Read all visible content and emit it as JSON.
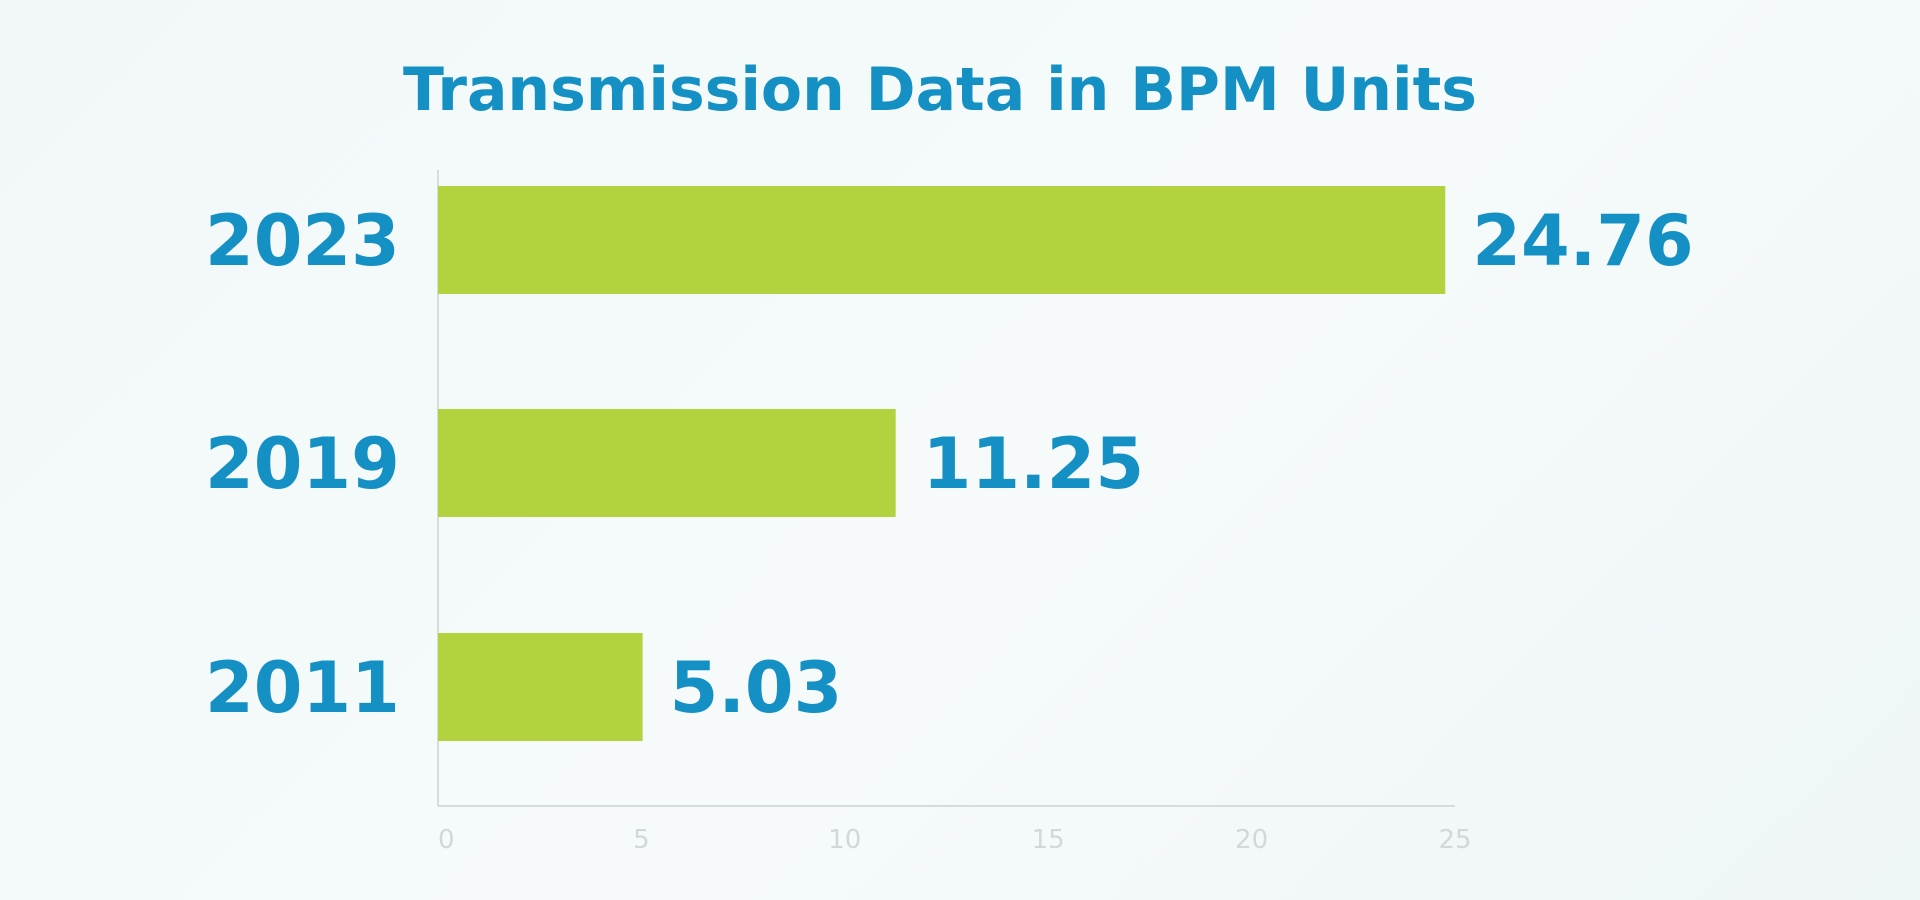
{
  "chart_data": {
    "type": "bar",
    "orientation": "horizontal",
    "title": "Transmission Data in BPM Units",
    "categories": [
      "2023",
      "2019",
      "2011"
    ],
    "values": [
      24.76,
      11.25,
      5.03
    ],
    "value_labels": [
      "24.76",
      "11.25",
      "5.03"
    ],
    "xlabel": "",
    "ylabel": "",
    "xlim": [
      0,
      25
    ],
    "xticks": [
      "0",
      "5",
      "10",
      "15",
      "20",
      "25"
    ],
    "grid": false,
    "legend": "none"
  },
  "colors": {
    "bar": "#b2d33e",
    "text": "#1590c4",
    "axis": "#d6dcdd",
    "tick": "#d2d8da"
  }
}
